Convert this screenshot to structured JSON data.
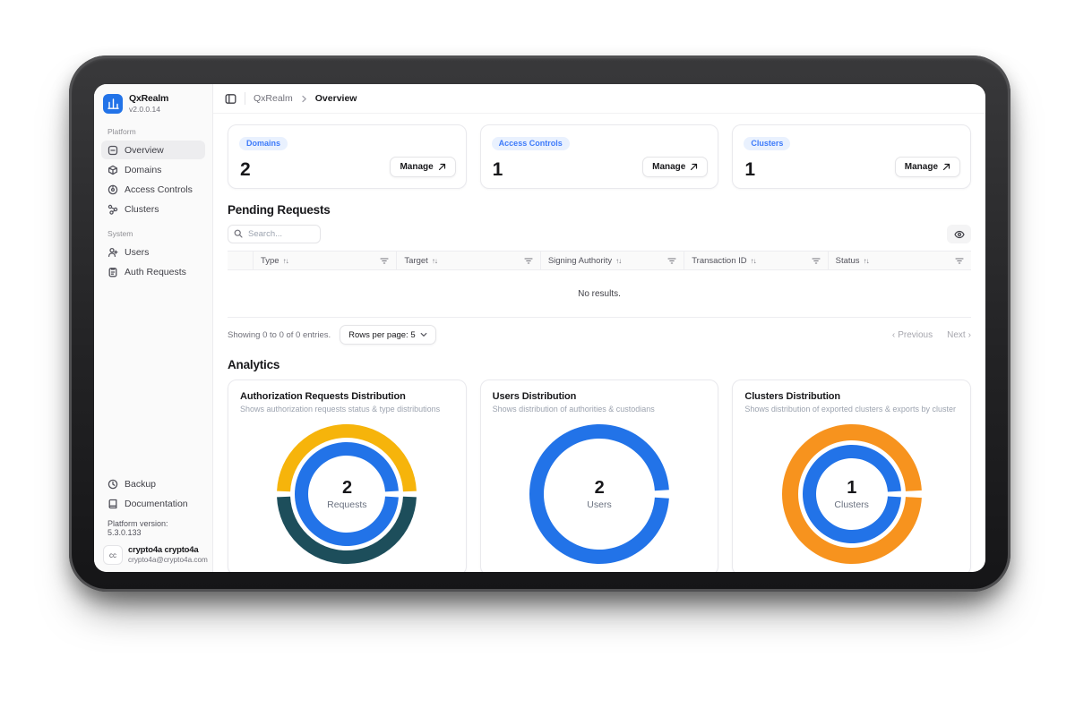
{
  "app": {
    "brand": {
      "name": "QxRealm",
      "version": "v2.0.0.14"
    },
    "sidebar": {
      "sections": [
        {
          "label": "Platform",
          "items": [
            {
              "label": "Overview",
              "icon": "overview-icon",
              "active": true
            },
            {
              "label": "Domains",
              "icon": "domains-icon",
              "active": false
            },
            {
              "label": "Access Controls",
              "icon": "access-controls-icon",
              "active": false
            },
            {
              "label": "Clusters",
              "icon": "clusters-icon",
              "active": false
            }
          ]
        },
        {
          "label": "System",
          "items": [
            {
              "label": "Users",
              "icon": "users-icon",
              "active": false
            },
            {
              "label": "Auth Requests",
              "icon": "auth-requests-icon",
              "active": false
            }
          ]
        }
      ],
      "footer_items": [
        {
          "label": "Backup",
          "icon": "backup-clock-icon"
        },
        {
          "label": "Documentation",
          "icon": "documentation-book-icon"
        }
      ],
      "platform_version": "Platform version: 5.3.0.133",
      "account": {
        "initials": "cc",
        "name": "crypto4a crypto4a",
        "email": "crypto4a@crypto4a.com"
      }
    },
    "breadcrumb": {
      "root": "QxRealm",
      "current": "Overview"
    },
    "summary_cards": [
      {
        "badge": "Domains",
        "value": "2",
        "action": "Manage"
      },
      {
        "badge": "Access Controls",
        "value": "1",
        "action": "Manage"
      },
      {
        "badge": "Clusters",
        "value": "1",
        "action": "Manage"
      }
    ],
    "pending_requests": {
      "title": "Pending Requests",
      "search_placeholder": "Search...",
      "columns": [
        "Type",
        "Target",
        "Signing Authority",
        "Transaction ID",
        "Status"
      ],
      "empty_text": "No results.",
      "footer": {
        "summary": "Showing 0 to 0 of 0 entries.",
        "rows_per_page": "Rows per page: 5",
        "previous": "Previous",
        "next": "Next"
      }
    },
    "analytics": {
      "title": "Analytics"
    }
  },
  "colors": {
    "accent_blue": "#2273E8",
    "badge_bg": "#E9F1FE",
    "badge_text": "#3E7BFA",
    "donut_yellow": "#F6B40B",
    "donut_teal": "#1D4E5B",
    "donut_orange": "#F7931E"
  },
  "chart_data": [
    {
      "type": "donut",
      "title": "Authorization Requests Distribution",
      "subtitle": "Shows authorization requests status & type distributions",
      "center_value": "2",
      "center_label": "Requests",
      "rings": [
        {
          "name": "status",
          "radius_outer": 78,
          "radius_inner": 63,
          "start_angle": 0,
          "pad_angle": 5,
          "segments": [
            {
              "value": 1,
              "color": "#1D4E5B"
            },
            {
              "value": 1,
              "color": "#F6B40B"
            }
          ]
        },
        {
          "name": "type",
          "radius_outer": 58,
          "radius_inner": 43,
          "start_angle": 0,
          "pad_angle": 7,
          "segments": [
            {
              "value": 2,
              "color": "#2273E8"
            }
          ]
        }
      ]
    },
    {
      "type": "donut",
      "title": "Users Distribution",
      "subtitle": "Shows distribution of authorities & custodians",
      "center_value": "2",
      "center_label": "Users",
      "rings": [
        {
          "name": "users",
          "radius_outer": 78,
          "radius_inner": 62,
          "start_angle": 0,
          "pad_angle": 7,
          "segments": [
            {
              "value": 2,
              "color": "#2273E8"
            }
          ]
        }
      ]
    },
    {
      "type": "donut",
      "title": "Clusters Distribution",
      "subtitle": "Shows distribution of exported clusters & exports by cluster",
      "center_value": "1",
      "center_label": "Clusters",
      "rings": [
        {
          "name": "clusters",
          "radius_outer": 78,
          "radius_inner": 60,
          "start_angle": 0,
          "pad_angle": 6,
          "segments": [
            {
              "value": 1,
              "color": "#F7931E"
            }
          ]
        },
        {
          "name": "exports",
          "radius_outer": 55,
          "radius_inner": 40,
          "start_angle": 0,
          "pad_angle": 7,
          "segments": [
            {
              "value": 1,
              "color": "#2273E8"
            }
          ]
        }
      ]
    }
  ]
}
